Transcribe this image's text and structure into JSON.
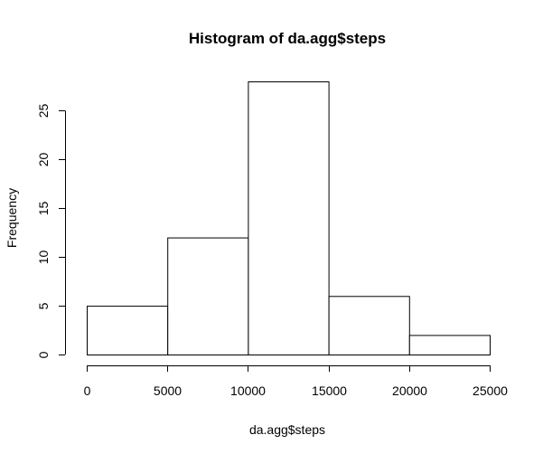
{
  "chart_data": {
    "type": "bar",
    "title": "Histogram of da.agg$steps",
    "xlabel": "da.agg$steps",
    "ylabel": "Frequency",
    "bins": [
      {
        "from": 0,
        "to": 5000,
        "count": 5
      },
      {
        "from": 5000,
        "to": 10000,
        "count": 12
      },
      {
        "from": 10000,
        "to": 15000,
        "count": 28
      },
      {
        "from": 15000,
        "to": 20000,
        "count": 6
      },
      {
        "from": 20000,
        "to": 25000,
        "count": 2
      }
    ],
    "xticks": [
      0,
      5000,
      10000,
      15000,
      20000,
      25000
    ],
    "yticks": [
      0,
      5,
      10,
      15,
      20,
      25
    ],
    "xlim": [
      0,
      25000
    ],
    "ylim": [
      0,
      28
    ],
    "grid": false
  }
}
